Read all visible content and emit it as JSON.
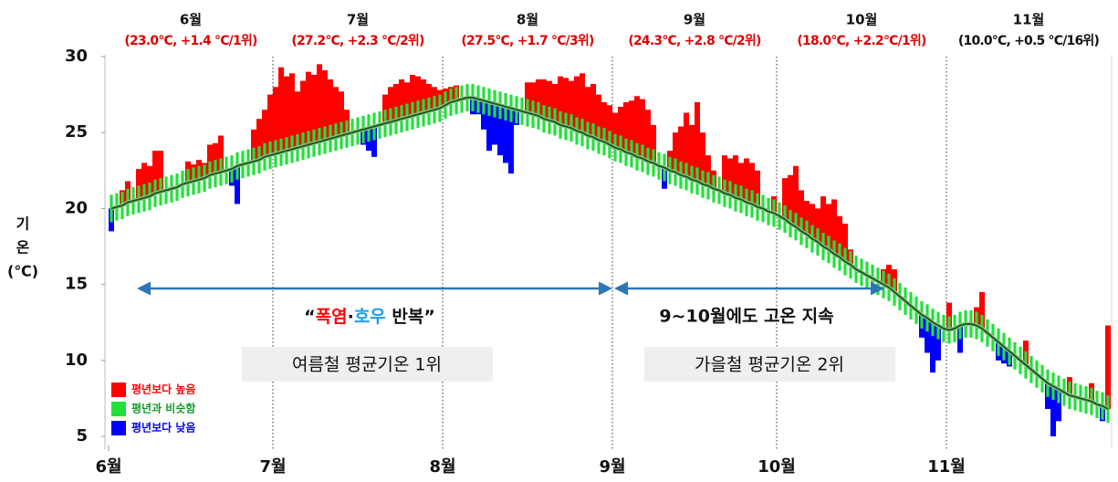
{
  "chart_data": {
    "type": "anomaly_bar",
    "y_label": [
      "기",
      "온",
      "(℃)"
    ],
    "ylim": [
      5,
      30
    ],
    "yticks": [
      5,
      10,
      15,
      20,
      25,
      30
    ],
    "xlim": [
      0,
      183
    ],
    "xticks": [
      {
        "value": 0,
        "label": "6월"
      },
      {
        "value": 30,
        "label": "7월"
      },
      {
        "value": 61,
        "label": "8월"
      },
      {
        "value": 92,
        "label": "9월"
      },
      {
        "value": 122,
        "label": "10월"
      },
      {
        "value": 153,
        "label": "11월"
      }
    ],
    "months": [
      {
        "name": "6월",
        "stat": "(23.0°C, +1.4 °C/1위)",
        "color": "#e00000"
      },
      {
        "name": "7월",
        "stat": "(27.2°C, +2.3 °C/2위)",
        "color": "#e00000"
      },
      {
        "name": "8월",
        "stat": "(27.5°C, +1.7 °C/3위)",
        "color": "#e00000"
      },
      {
        "name": "9월",
        "stat": "(24.3°C, +2.8 °C/2위)",
        "color": "#e00000"
      },
      {
        "name": "10월",
        "stat": "(18.0°C, +2.2°C/1위)",
        "color": "#e00000"
      },
      {
        "name": "11월",
        "stat": "(10.0°C, +0.5 °C/16위)",
        "color": "#111111"
      }
    ],
    "series": [
      {
        "name": "평년보다 높음",
        "color": "#ff0000"
      },
      {
        "name": "평년과 비슷함",
        "color": "#22e03a"
      },
      {
        "name": "평년보다 낮음",
        "color": "#0000ff"
      }
    ],
    "normal_color": "#1f5a1f",
    "similar_range": 0.9,
    "normal": [
      20.0,
      20.1,
      20.2,
      20.4,
      20.5,
      20.6,
      20.7,
      20.8,
      21.0,
      21.1,
      21.2,
      21.3,
      21.4,
      21.6,
      21.7,
      21.8,
      21.9,
      22.0,
      22.2,
      22.3,
      22.4,
      22.5,
      22.6,
      22.8,
      22.9,
      23.0,
      23.1,
      23.2,
      23.4,
      23.5,
      23.6,
      23.7,
      23.8,
      23.9,
      24.0,
      24.1,
      24.2,
      24.3,
      24.4,
      24.5,
      24.6,
      24.7,
      24.8,
      24.9,
      25.0,
      25.1,
      25.2,
      25.3,
      25.4,
      25.5,
      25.6,
      25.7,
      25.8,
      25.9,
      26.0,
      26.1,
      26.2,
      26.3,
      26.4,
      26.5,
      26.6,
      26.8,
      27.0,
      27.1,
      27.2,
      27.3,
      27.3,
      27.2,
      27.1,
      27.0,
      26.9,
      26.8,
      26.7,
      26.6,
      26.5,
      26.4,
      26.3,
      26.2,
      26.1,
      25.9,
      25.8,
      25.7,
      25.5,
      25.4,
      25.3,
      25.1,
      25.0,
      24.8,
      24.7,
      24.5,
      24.4,
      24.2,
      24.0,
      23.9,
      23.7,
      23.6,
      23.4,
      23.3,
      23.1,
      23.0,
      22.8,
      22.7,
      22.5,
      22.4,
      22.2,
      22.1,
      21.9,
      21.8,
      21.6,
      21.5,
      21.3,
      21.2,
      21.0,
      20.9,
      20.7,
      20.6,
      20.4,
      20.3,
      20.1,
      20.0,
      19.8,
      19.7,
      19.5,
      19.3,
      19.0,
      18.8,
      18.5,
      18.3,
      18.0,
      17.8,
      17.5,
      17.3,
      17.0,
      16.8,
      16.5,
      16.3,
      16.0,
      15.8,
      15.6,
      15.4,
      15.2,
      15.0,
      14.8,
      14.5,
      14.2,
      13.9,
      13.6,
      13.3,
      13.0,
      12.8,
      12.5,
      12.3,
      12.1,
      12.0,
      12.1,
      12.3,
      12.4,
      12.4,
      12.3,
      12.1,
      11.8,
      11.5,
      11.2,
      10.9,
      10.6,
      10.3,
      10.0,
      9.7,
      9.4,
      9.1,
      8.8,
      8.5,
      8.3,
      8.1,
      7.9,
      7.7,
      7.6,
      7.5,
      7.4,
      7.3,
      7.1,
      7.0,
      6.8
    ],
    "observed": [
      18.5,
      19.4,
      21.2,
      21.8,
      21.3,
      22.6,
      23.0,
      22.8,
      23.8,
      23.8,
      22.0,
      21.4,
      20.5,
      21.6,
      23.1,
      22.9,
      23.2,
      23.0,
      24.2,
      24.3,
      24.8,
      22.5,
      21.5,
      20.3,
      23.3,
      23.8,
      25.2,
      25.9,
      26.5,
      27.5,
      28.0,
      29.3,
      28.7,
      28.9,
      27.7,
      28.4,
      29.0,
      28.8,
      29.5,
      29.1,
      28.5,
      28.0,
      27.7,
      26.5,
      25.5,
      24.8,
      24.2,
      23.8,
      23.4,
      26.0,
      27.5,
      28.0,
      28.2,
      28.5,
      28.3,
      28.8,
      28.7,
      28.5,
      28.2,
      28.0,
      27.8,
      27.9,
      28.0,
      28.1,
      27.6,
      26.8,
      26.2,
      26.2,
      25.2,
      23.8,
      24.2,
      23.5,
      23.0,
      22.3,
      25.5,
      26.5,
      28.3,
      28.3,
      28.5,
      28.5,
      28.4,
      28.2,
      28.7,
      28.6,
      28.4,
      28.7,
      28.9,
      28.0,
      28.2,
      27.5,
      27.0,
      26.8,
      26.3,
      26.7,
      27.0,
      27.1,
      27.4,
      27.2,
      26.5,
      25.5,
      22.5,
      21.3,
      23.8,
      25.0,
      25.4,
      26.3,
      25.5,
      27.0,
      25.0,
      23.5,
      22.5,
      21.5,
      23.5,
      23.3,
      23.5,
      23.0,
      23.3,
      23.0,
      22.5,
      20.8,
      20.5,
      20.8,
      20.2,
      22.0,
      22.2,
      22.8,
      21.2,
      20.5,
      20.3,
      20.0,
      20.8,
      20.3,
      20.6,
      19.5,
      19.0,
      17.3,
      16.3,
      16.2,
      16.5,
      15.7,
      15.0,
      16.0,
      16.3,
      16.0,
      13.5,
      13.0,
      13.0,
      12.5,
      11.5,
      10.5,
      9.2,
      10.0,
      12.5,
      13.8,
      12.3,
      10.5,
      12.5,
      13.0,
      13.5,
      14.5,
      12.5,
      11.0,
      10.0,
      9.8,
      9.6,
      10.5,
      10.0,
      11.3,
      9.4,
      8.3,
      8.0,
      6.8,
      5.0,
      6.0,
      7.3,
      8.9,
      8.2,
      7.5,
      8.1,
      8.5,
      6.5,
      6.0,
      12.3
    ],
    "annotations": {
      "summer_phrase": [
        {
          "text": "“",
          "color": "#111111"
        },
        {
          "text": "폭염",
          "color": "#ff0000"
        },
        {
          "text": "·",
          "color": "#111111"
        },
        {
          "text": "호우",
          "color": "#1aa0e8"
        },
        {
          "text": " 반복”",
          "color": "#111111"
        }
      ],
      "autumn_phrase": "9~10월에도 고온 지속",
      "summer_box": "여름철 평균기온 1위",
      "autumn_box": "가을철 평균기온 2위"
    }
  }
}
